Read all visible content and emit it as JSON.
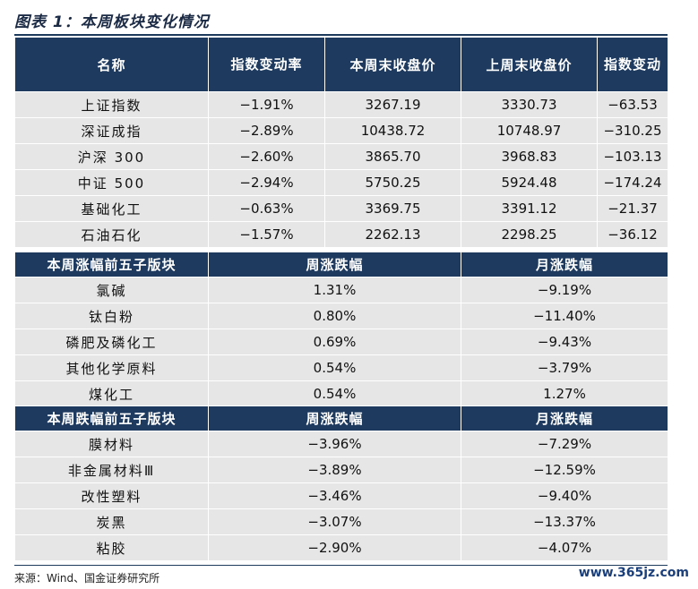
{
  "title": "图表 1：本周板块变化情况",
  "table_main": {
    "headers": [
      "名称",
      "指数变动率",
      "本周末收盘价",
      "上周末收盘价",
      "指数变动"
    ],
    "rows": [
      [
        "上证指数",
        "−1.91%",
        "3267.19",
        "3330.73",
        "−63.53"
      ],
      [
        "深证成指",
        "−2.89%",
        "10438.72",
        "10748.97",
        "−310.25"
      ],
      [
        "沪深 300",
        "−2.60%",
        "3865.70",
        "3968.83",
        "−103.13"
      ],
      [
        "中证 500",
        "−2.94%",
        "5750.25",
        "5924.48",
        "−174.24"
      ],
      [
        "基础化工",
        "−0.63%",
        "3369.75",
        "3391.12",
        "−21.37"
      ],
      [
        "石油石化",
        "−1.57%",
        "2262.13",
        "2298.25",
        "−36.12"
      ]
    ]
  },
  "table_up": {
    "headers": [
      "本周涨幅前五子版块",
      "周涨跌幅",
      "月涨跌幅"
    ],
    "rows": [
      [
        "氯碱",
        "1.31%",
        "−9.19%"
      ],
      [
        "钛白粉",
        "0.80%",
        "−11.40%"
      ],
      [
        "磷肥及磷化工",
        "0.69%",
        "−9.43%"
      ],
      [
        "其他化学原料",
        "0.54%",
        "−3.79%"
      ],
      [
        "煤化工",
        "0.54%",
        "1.27%"
      ]
    ]
  },
  "table_down": {
    "headers": [
      "本周跌幅前五子版块",
      "周涨跌幅",
      "月涨跌幅"
    ],
    "rows": [
      [
        "膜材料",
        "−3.96%",
        "−7.29%"
      ],
      [
        "非金属材料Ⅲ",
        "−3.89%",
        "−12.59%"
      ],
      [
        "改性塑料",
        "−3.46%",
        "−9.40%"
      ],
      [
        "炭黑",
        "−3.07%",
        "−13.37%"
      ],
      [
        "粘胶",
        "−2.90%",
        "−4.07%"
      ]
    ]
  },
  "source": "来源：Wind、国金证券研究所",
  "watermark": "www.365jz.com",
  "colors": {
    "header_bg": "#1e3a5f",
    "row_bg": "#e6e6e6"
  }
}
